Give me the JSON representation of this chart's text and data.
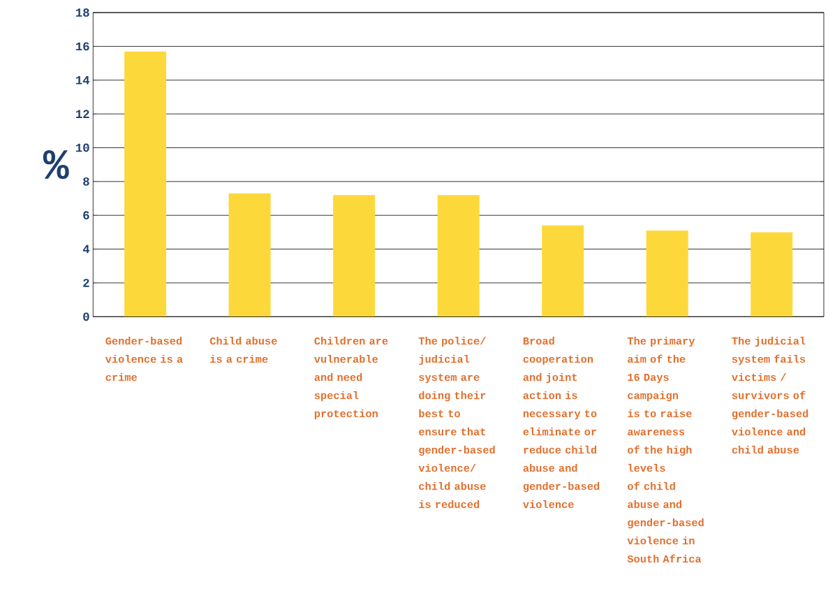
{
  "chart_data": {
    "type": "bar",
    "ylabel": "%",
    "categories": [
      "Gender-based violence is a crime",
      "Child abuse is a crime",
      "Children are vulnerable and need special protection",
      "The police/ judicial system are doing their best to ensure that gender-based violence/ child abuse is reduced",
      "Broad cooperation and joint action is necessary to eliminate or reduce child abuse and gender-based violence",
      "The primary aim of the 16 Days campaign is to raise awareness of the high levels of child abuse and gender-based violence in South Africa",
      "The judicial system fails victims / survivors of gender-based violence and child abuse"
    ],
    "values": [
      15.7,
      7.3,
      7.2,
      7.2,
      5.4,
      5.1,
      5.0
    ],
    "color": "#fdd83a",
    "ylim": [
      0,
      18
    ],
    "yticks": [
      0,
      2,
      4,
      6,
      8,
      10,
      12,
      14,
      16,
      18
    ],
    "grid": "y"
  }
}
